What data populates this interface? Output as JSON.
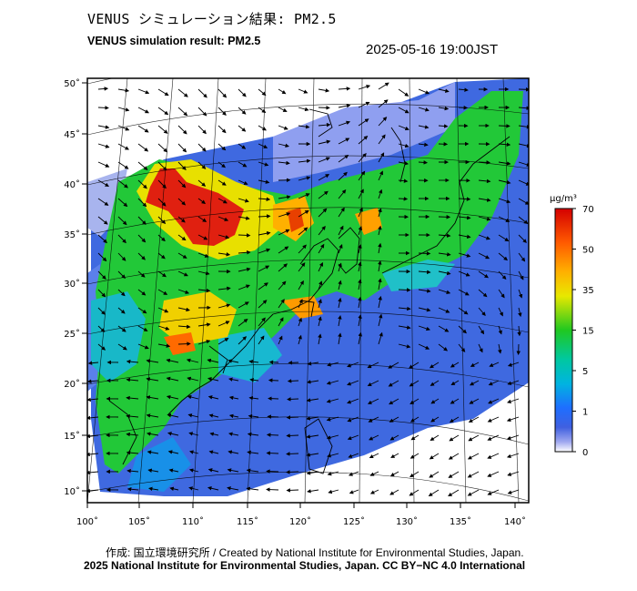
{
  "title_jp": "VENUS シミュレーション結果: PM2.5",
  "title_en": "VENUS simulation result: PM2.5",
  "datetime": "2025-05-16 19:00JST",
  "map": {
    "lon_ticks": [
      "100˚",
      "105˚",
      "110˚",
      "115˚",
      "120˚",
      "125˚",
      "130˚",
      "135˚",
      "140˚"
    ],
    "lat_ticks": [
      "50˚",
      "45˚",
      "40˚",
      "35˚",
      "30˚",
      "25˚",
      "20˚",
      "15˚",
      "10˚"
    ]
  },
  "colorbar": {
    "unit": "μg/m³",
    "labels": [
      "70",
      "50",
      "35",
      "15",
      "5",
      "1",
      "0"
    ],
    "colors": [
      "#d40000",
      "#ff7f00",
      "#e8e000",
      "#00c800",
      "#00c8c8",
      "#1e78ff",
      "#3040d0",
      "#ffffff"
    ]
  },
  "credit": {
    "line1": "作成: 国立環境研究所 / Created by National Institute for Environmental Studies, Japan.",
    "line2": "2025 National Institute for Environmental Studies, Japan. CC BY−NC 4.0 International"
  },
  "colors": {
    "ocean": "#3f69e0",
    "low": "#2b55e8",
    "mid": "#1ec83c",
    "high": "#e02010",
    "frame": "#000000"
  }
}
